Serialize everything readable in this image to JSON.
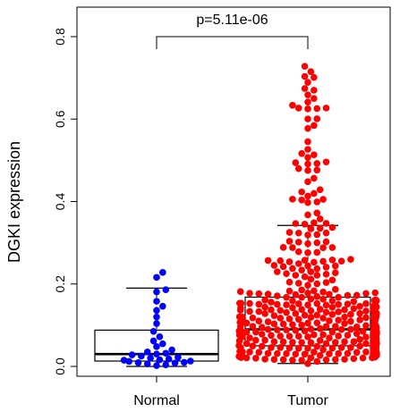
{
  "chart_data": {
    "type": "box-beeswarm",
    "title": "",
    "xlabel": "",
    "ylabel": "DGKI expression",
    "ylim": [
      -0.02,
      0.82
    ],
    "yticks": [
      "0.0",
      "0.2",
      "0.4",
      "0.6",
      "0.8"
    ],
    "ytick_values": [
      0.0,
      0.2,
      0.4,
      0.6,
      0.8
    ],
    "categories": [
      "Normal",
      "Tumor"
    ],
    "annotation": "p=5.11e-06",
    "grid": false,
    "legend": "none",
    "series": [
      {
        "category": "Normal",
        "color": "#0000ff",
        "box": {
          "lower_whisker": 0.0,
          "q1": 0.013,
          "median": 0.03,
          "q3": 0.088,
          "upper_whisker": 0.19
        },
        "n_points": 33,
        "values": [
          0.228,
          0.216,
          0.186,
          0.181,
          0.158,
          0.146,
          0.136,
          0.12,
          0.104,
          0.085,
          0.072,
          0.062,
          0.055,
          0.048,
          0.04,
          0.035,
          0.032,
          0.03,
          0.028,
          0.025,
          0.022,
          0.02,
          0.018,
          0.016,
          0.015,
          0.013,
          0.012,
          0.01,
          0.009,
          0.008,
          0.006,
          0.004,
          0.002
        ]
      },
      {
        "category": "Tumor",
        "color": "#ff0000",
        "box": {
          "lower_whisker": 0.007,
          "q1": 0.05,
          "median": 0.09,
          "q3": 0.168,
          "upper_whisker": 0.342
        },
        "n_points": 460,
        "max_value": 0.728
      }
    ]
  }
}
